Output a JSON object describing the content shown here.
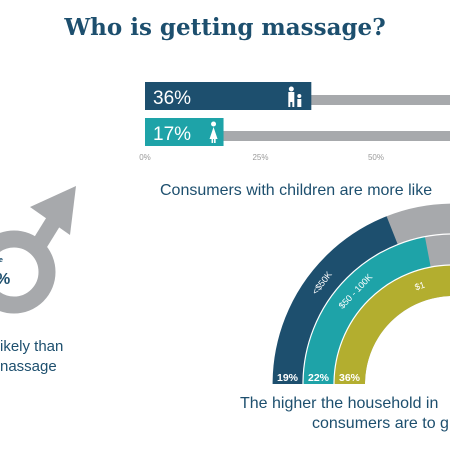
{
  "title": "Who is getting massage?",
  "colors": {
    "navy": "#1d4f6e",
    "teal": "#1ea3a8",
    "olive": "#b3ae2f",
    "gray": "#a7a9ac",
    "white": "#ffffff"
  },
  "gender": {
    "value_fragment": "%",
    "label_fragment": "e",
    "caption_line1": "ikely than",
    "caption_line2": "nassage"
  },
  "children_caption": "Consumers with children are more like",
  "income_caption_line1": "The higher the household in",
  "income_caption_line2": "consumers are to g",
  "chart_data": [
    {
      "type": "bar",
      "orientation": "horizontal",
      "categories": [
        "with children",
        "without children"
      ],
      "values": [
        36,
        17
      ],
      "value_labels": [
        "36%",
        "17%"
      ],
      "icons": [
        "family-icon",
        "person-icon"
      ],
      "xlim": [
        0,
        100
      ],
      "x_ticks": [
        0,
        25,
        50
      ],
      "x_tick_labels": [
        "0%",
        "25%",
        "50%"
      ],
      "colors": [
        "#1d4f6e",
        "#1ea3a8"
      ],
      "track_color": "#a7a9ac"
    },
    {
      "type": "pie",
      "style": "concentric-arcs",
      "series": [
        {
          "name": "<$50K",
          "value": 19,
          "label": "19%",
          "color": "#1d4f6e"
        },
        {
          "name": "$50 - 100K",
          "value": 22,
          "label": "22%",
          "color": "#1ea3a8"
        },
        {
          "name": "$1",
          "value": 36,
          "label": "36%",
          "color": "#b3ae2f"
        }
      ]
    }
  ]
}
